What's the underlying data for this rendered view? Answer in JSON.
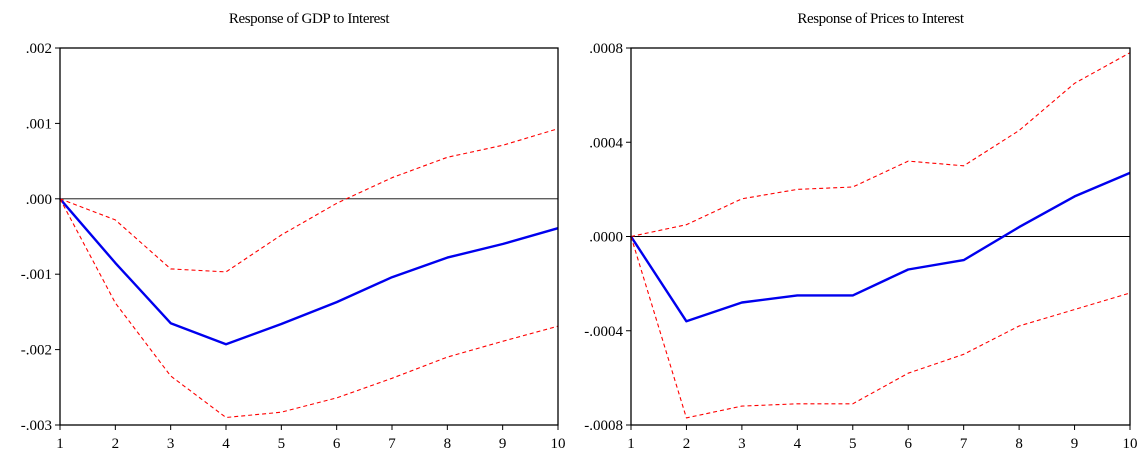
{
  "chart_data": [
    {
      "type": "line",
      "title": "Response of GDP to Interest",
      "x": [
        1,
        2,
        3,
        4,
        5,
        6,
        7,
        8,
        9,
        10
      ],
      "xlim": [
        1,
        10
      ],
      "ylim": [
        -0.003,
        0.002
      ],
      "yticks": [
        0.002,
        0.001,
        0.0,
        -0.001,
        -0.002,
        -0.003
      ],
      "ytick_labels": [
        ".002",
        ".001",
        ".000",
        "-.001",
        "-.002",
        "-.003"
      ],
      "xtick_labels": [
        "1",
        "2",
        "3",
        "4",
        "5",
        "6",
        "7",
        "8",
        "9",
        "10"
      ],
      "zero_line": true,
      "series": [
        {
          "role": "response",
          "color": "#0000ee",
          "style": "solid",
          "values": [
            0.0,
            -0.00085,
            -0.00165,
            -0.00193,
            -0.00166,
            -0.00137,
            -0.00104,
            -0.00078,
            -0.0006,
            -0.00039
          ]
        },
        {
          "role": "upper_band",
          "color": "#ff0000",
          "style": "dashed",
          "values": [
            0.0,
            -0.00028,
            -0.00093,
            -0.00097,
            -0.00048,
            -6e-05,
            0.00028,
            0.00055,
            0.00071,
            0.00093
          ]
        },
        {
          "role": "lower_band",
          "color": "#ff0000",
          "style": "dashed",
          "values": [
            0.0,
            -0.00138,
            -0.00235,
            -0.0029,
            -0.00283,
            -0.00264,
            -0.00238,
            -0.0021,
            -0.00189,
            -0.00169
          ]
        }
      ]
    },
    {
      "type": "line",
      "title": "Response of Prices to Interest",
      "x": [
        1,
        2,
        3,
        4,
        5,
        6,
        7,
        8,
        9,
        10
      ],
      "xlim": [
        1,
        10
      ],
      "ylim": [
        -0.0008,
        0.0008
      ],
      "yticks": [
        0.0008,
        0.0004,
        0.0,
        -0.0004,
        -0.0008
      ],
      "ytick_labels": [
        ".0008",
        ".0004",
        ".0000",
        "-.0004",
        "-.0008"
      ],
      "xtick_labels": [
        "1",
        "2",
        "3",
        "4",
        "5",
        "6",
        "7",
        "8",
        "9",
        "10"
      ],
      "zero_line": true,
      "series": [
        {
          "role": "response",
          "color": "#0000ee",
          "style": "solid",
          "values": [
            0.0,
            -0.00036,
            -0.00028,
            -0.00025,
            -0.00025,
            -0.00014,
            -0.0001,
            4e-05,
            0.00017,
            0.00027
          ]
        },
        {
          "role": "upper_band",
          "color": "#ff0000",
          "style": "dashed",
          "values": [
            0.0,
            5e-05,
            0.00016,
            0.0002,
            0.00021,
            0.00032,
            0.0003,
            0.00045,
            0.00065,
            0.00078
          ]
        },
        {
          "role": "lower_band",
          "color": "#ff0000",
          "style": "dashed",
          "values": [
            0.0,
            -0.00077,
            -0.00072,
            -0.00071,
            -0.00071,
            -0.00058,
            -0.0005,
            -0.00038,
            -0.00031,
            -0.00024
          ]
        }
      ]
    }
  ]
}
